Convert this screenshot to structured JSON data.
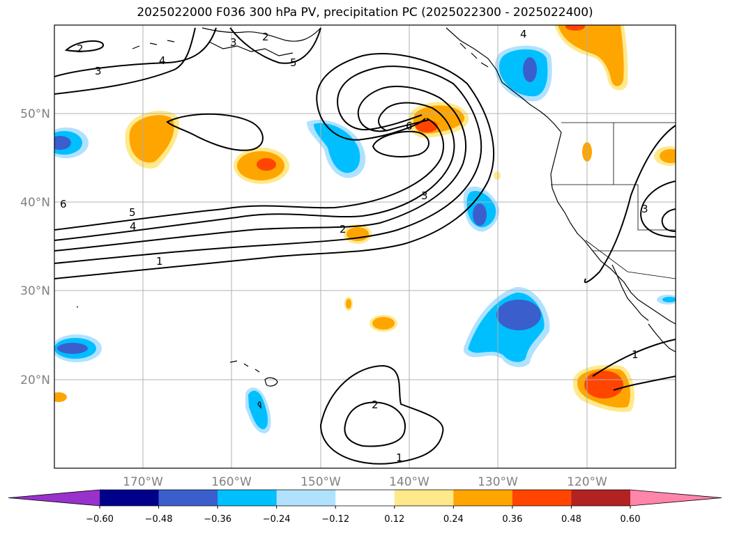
{
  "title": "2025022000 F036 300 hPa PV, precipitation PC (2025022300 - 2025022400)",
  "map": {
    "projection": "plate carree",
    "lon_range": [
      -180,
      -110
    ],
    "lat_range": [
      10,
      60
    ],
    "gridlines": true,
    "lat_labels": [
      "50°N",
      "40°N",
      "30°N",
      "20°N"
    ],
    "lon_labels": [
      "170°W",
      "160°W",
      "150°W",
      "140°W",
      "130°W",
      "120°W"
    ],
    "contour_field": "300 hPa PV",
    "contour_labels": [
      "1",
      "2",
      "3",
      "4",
      "5",
      "6"
    ],
    "shading_field": "precipitation PC"
  },
  "colorbar": {
    "levels": [
      "−0.60",
      "−0.48",
      "−0.36",
      "−0.24",
      "−0.12",
      "0.12",
      "0.24",
      "0.36",
      "0.48",
      "0.60"
    ],
    "colors": [
      "#9932cc",
      "#00008b",
      "#3a5fcd",
      "#00bfff",
      "#b0e2ff",
      "#ffffff",
      "#ffe98a",
      "#ffa500",
      "#ff4500",
      "#b22222",
      "#ff85ab"
    ],
    "extend": "both"
  }
}
